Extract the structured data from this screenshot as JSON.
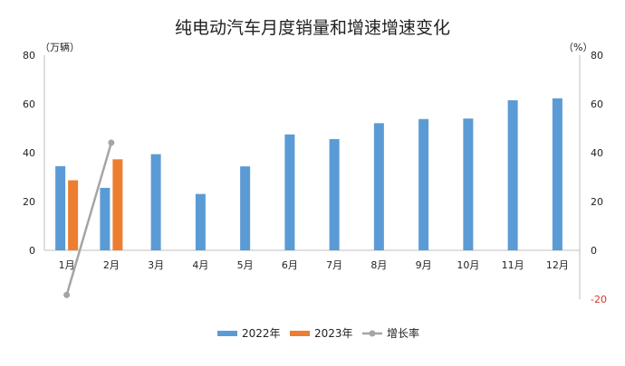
{
  "chart_data": {
    "type": "bar",
    "title": "纯电动汽车月度销量和增速增速变化",
    "left_unit": "（万辆）",
    "right_unit": "（%）",
    "categories": [
      "1月",
      "2月",
      "3月",
      "4月",
      "5月",
      "6月",
      "7月",
      "8月",
      "9月",
      "10月",
      "11月",
      "12月"
    ],
    "left_axis": {
      "min": 0,
      "max": 80,
      "ticks": [
        "0",
        "20",
        "40",
        "60",
        "80"
      ]
    },
    "right_axis": {
      "min": -20,
      "max": 80,
      "ticks": [
        "-20",
        "0",
        "20",
        "40",
        "60",
        "80"
      ]
    },
    "series": [
      {
        "name": "2022年",
        "type": "bar",
        "axis": "left",
        "color": "#5b9bd5",
        "values": [
          34.5,
          25.6,
          39.4,
          23.1,
          34.4,
          47.5,
          45.6,
          52.1,
          53.8,
          54.0,
          61.5,
          62.3
        ]
      },
      {
        "name": "2023年",
        "type": "bar",
        "axis": "left",
        "color": "#ed7d31",
        "values": [
          28.7,
          37.3,
          null,
          null,
          null,
          null,
          null,
          null,
          null,
          null,
          null,
          null
        ]
      },
      {
        "name": "增长率",
        "type": "line",
        "axis": "right",
        "color": "#a5a5a5",
        "values": [
          -18.3,
          44.1,
          null,
          null,
          null,
          null,
          null,
          null,
          null,
          null,
          null,
          null
        ]
      }
    ],
    "legend_position": "bottom"
  }
}
